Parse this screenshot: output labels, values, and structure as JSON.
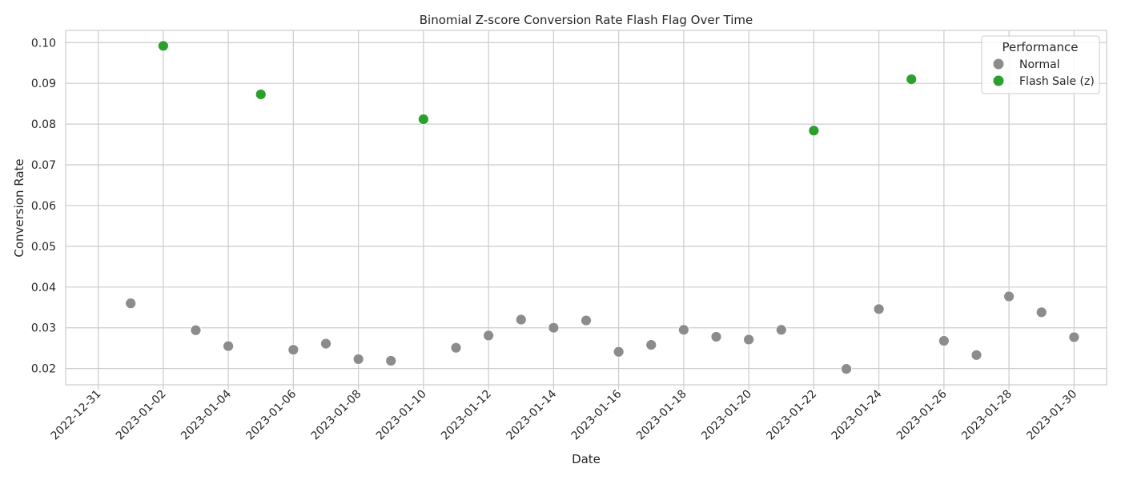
{
  "chart_data": {
    "type": "scatter",
    "title": "Binomial Z-score Conversion Rate Flash Flag Over Time",
    "xlabel": "Date",
    "ylabel": "Conversion Rate",
    "xlim": [
      "2022-12-30",
      "2023-01-31"
    ],
    "ylim": [
      0.016,
      0.103
    ],
    "x_ticks": [
      "2022-12-31",
      "2023-01-02",
      "2023-01-04",
      "2023-01-06",
      "2023-01-08",
      "2023-01-10",
      "2023-01-12",
      "2023-01-14",
      "2023-01-16",
      "2023-01-18",
      "2023-01-20",
      "2023-01-22",
      "2023-01-24",
      "2023-01-26",
      "2023-01-28",
      "2023-01-30"
    ],
    "y_ticks": [
      "0.02",
      "0.03",
      "0.04",
      "0.05",
      "0.06",
      "0.07",
      "0.08",
      "0.09",
      "0.10"
    ],
    "grid": true,
    "legend": {
      "title": "Performance",
      "position": "top-right"
    },
    "series": [
      {
        "name": "Normal",
        "color": "#8c8c8c",
        "points": [
          {
            "x": "2023-01-01",
            "y": 0.036
          },
          {
            "x": "2023-01-03",
            "y": 0.0294
          },
          {
            "x": "2023-01-04",
            "y": 0.0255
          },
          {
            "x": "2023-01-06",
            "y": 0.0246
          },
          {
            "x": "2023-01-07",
            "y": 0.0261
          },
          {
            "x": "2023-01-08",
            "y": 0.0223
          },
          {
            "x": "2023-01-09",
            "y": 0.0219
          },
          {
            "x": "2023-01-11",
            "y": 0.0251
          },
          {
            "x": "2023-01-12",
            "y": 0.0281
          },
          {
            "x": "2023-01-13",
            "y": 0.032
          },
          {
            "x": "2023-01-14",
            "y": 0.03
          },
          {
            "x": "2023-01-15",
            "y": 0.0318
          },
          {
            "x": "2023-01-16",
            "y": 0.0241
          },
          {
            "x": "2023-01-17",
            "y": 0.0258
          },
          {
            "x": "2023-01-18",
            "y": 0.0295
          },
          {
            "x": "2023-01-19",
            "y": 0.0278
          },
          {
            "x": "2023-01-20",
            "y": 0.0271
          },
          {
            "x": "2023-01-21",
            "y": 0.0295
          },
          {
            "x": "2023-01-23",
            "y": 0.0199
          },
          {
            "x": "2023-01-24",
            "y": 0.0346
          },
          {
            "x": "2023-01-26",
            "y": 0.0268
          },
          {
            "x": "2023-01-27",
            "y": 0.0233
          },
          {
            "x": "2023-01-28",
            "y": 0.0377
          },
          {
            "x": "2023-01-29",
            "y": 0.0338
          },
          {
            "x": "2023-01-30",
            "y": 0.0277
          }
        ]
      },
      {
        "name": "Flash Sale (z)",
        "color": "#2ca02c",
        "points": [
          {
            "x": "2023-01-02",
            "y": 0.0992
          },
          {
            "x": "2023-01-05",
            "y": 0.0873
          },
          {
            "x": "2023-01-10",
            "y": 0.0812
          },
          {
            "x": "2023-01-22",
            "y": 0.0784
          },
          {
            "x": "2023-01-25",
            "y": 0.091
          }
        ]
      }
    ]
  }
}
